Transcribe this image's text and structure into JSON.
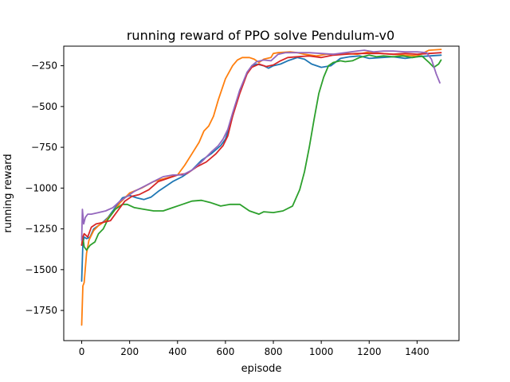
{
  "chart_data": {
    "type": "line",
    "title": "running reward of PPO solve Pendulum-v0",
    "xlabel": "episode",
    "ylabel": "running reward",
    "xlim": [
      -75,
      1575
    ],
    "ylim": [
      -1935,
      -130
    ],
    "xticks": [
      0,
      200,
      400,
      600,
      800,
      1000,
      1200,
      1400
    ],
    "xtick_labels": [
      "0",
      "200",
      "400",
      "600",
      "800",
      "1000",
      "1200",
      "1400"
    ],
    "yticks": [
      -250,
      -500,
      -750,
      -1000,
      -1250,
      -1500,
      -1750
    ],
    "ytick_labels": [
      "−250",
      "−500",
      "−750",
      "−1000",
      "−1250",
      "−1500",
      "−1750"
    ],
    "grid": false,
    "legend": "none",
    "series": [
      {
        "color": "#1f77b4",
        "points": [
          [
            0,
            -1570
          ],
          [
            5,
            -1340
          ],
          [
            10,
            -1300
          ],
          [
            20,
            -1310
          ],
          [
            35,
            -1300
          ],
          [
            50,
            -1250
          ],
          [
            80,
            -1220
          ],
          [
            110,
            -1180
          ],
          [
            140,
            -1120
          ],
          [
            170,
            -1060
          ],
          [
            200,
            -1045
          ],
          [
            230,
            -1060
          ],
          [
            260,
            -1070
          ],
          [
            290,
            -1055
          ],
          [
            320,
            -1020
          ],
          [
            350,
            -990
          ],
          [
            380,
            -960
          ],
          [
            420,
            -930
          ],
          [
            460,
            -890
          ],
          [
            500,
            -830
          ],
          [
            540,
            -790
          ],
          [
            580,
            -740
          ],
          [
            600,
            -700
          ],
          [
            630,
            -560
          ],
          [
            660,
            -400
          ],
          [
            690,
            -300
          ],
          [
            710,
            -250
          ],
          [
            730,
            -240
          ],
          [
            760,
            -250
          ],
          [
            780,
            -265
          ],
          [
            800,
            -250
          ],
          [
            830,
            -240
          ],
          [
            860,
            -220
          ],
          [
            900,
            -200
          ],
          [
            930,
            -210
          ],
          [
            960,
            -240
          ],
          [
            1000,
            -260
          ],
          [
            1040,
            -250
          ],
          [
            1080,
            -205
          ],
          [
            1120,
            -195
          ],
          [
            1160,
            -190
          ],
          [
            1200,
            -205
          ],
          [
            1250,
            -200
          ],
          [
            1300,
            -195
          ],
          [
            1350,
            -205
          ],
          [
            1400,
            -195
          ],
          [
            1450,
            -190
          ],
          [
            1500,
            -185
          ]
        ]
      },
      {
        "color": "#ff7f0e",
        "points": [
          [
            0,
            -1840
          ],
          [
            5,
            -1600
          ],
          [
            10,
            -1580
          ],
          [
            20,
            -1400
          ],
          [
            30,
            -1320
          ],
          [
            50,
            -1260
          ],
          [
            70,
            -1230
          ],
          [
            100,
            -1200
          ],
          [
            130,
            -1150
          ],
          [
            160,
            -1090
          ],
          [
            200,
            -1030
          ],
          [
            250,
            -1000
          ],
          [
            300,
            -960
          ],
          [
            350,
            -940
          ],
          [
            400,
            -920
          ],
          [
            430,
            -860
          ],
          [
            460,
            -790
          ],
          [
            490,
            -720
          ],
          [
            510,
            -650
          ],
          [
            530,
            -620
          ],
          [
            550,
            -560
          ],
          [
            570,
            -460
          ],
          [
            600,
            -330
          ],
          [
            630,
            -250
          ],
          [
            650,
            -215
          ],
          [
            670,
            -200
          ],
          [
            700,
            -200
          ],
          [
            720,
            -210
          ],
          [
            740,
            -230
          ],
          [
            760,
            -210
          ],
          [
            790,
            -200
          ],
          [
            800,
            -175
          ],
          [
            820,
            -170
          ],
          [
            870,
            -165
          ],
          [
            900,
            -170
          ],
          [
            930,
            -180
          ],
          [
            980,
            -190
          ],
          [
            1020,
            -180
          ],
          [
            1060,
            -180
          ],
          [
            1100,
            -175
          ],
          [
            1150,
            -180
          ],
          [
            1200,
            -165
          ],
          [
            1250,
            -175
          ],
          [
            1300,
            -180
          ],
          [
            1350,
            -185
          ],
          [
            1400,
            -190
          ],
          [
            1450,
            -155
          ],
          [
            1500,
            -150
          ]
        ]
      },
      {
        "color": "#2ca02c",
        "points": [
          [
            0,
            -1350
          ],
          [
            5,
            -1300
          ],
          [
            10,
            -1360
          ],
          [
            20,
            -1380
          ],
          [
            35,
            -1350
          ],
          [
            55,
            -1330
          ],
          [
            70,
            -1280
          ],
          [
            90,
            -1250
          ],
          [
            110,
            -1190
          ],
          [
            140,
            -1130
          ],
          [
            170,
            -1100
          ],
          [
            190,
            -1100
          ],
          [
            220,
            -1120
          ],
          [
            260,
            -1130
          ],
          [
            300,
            -1140
          ],
          [
            340,
            -1140
          ],
          [
            380,
            -1120
          ],
          [
            420,
            -1100
          ],
          [
            460,
            -1080
          ],
          [
            500,
            -1075
          ],
          [
            540,
            -1090
          ],
          [
            580,
            -1110
          ],
          [
            620,
            -1100
          ],
          [
            660,
            -1100
          ],
          [
            700,
            -1140
          ],
          [
            740,
            -1160
          ],
          [
            760,
            -1145
          ],
          [
            800,
            -1150
          ],
          [
            840,
            -1140
          ],
          [
            880,
            -1110
          ],
          [
            910,
            -1010
          ],
          [
            930,
            -900
          ],
          [
            950,
            -750
          ],
          [
            970,
            -580
          ],
          [
            990,
            -420
          ],
          [
            1010,
            -320
          ],
          [
            1030,
            -250
          ],
          [
            1050,
            -230
          ],
          [
            1080,
            -220
          ],
          [
            1100,
            -225
          ],
          [
            1130,
            -220
          ],
          [
            1160,
            -200
          ],
          [
            1200,
            -185
          ],
          [
            1230,
            -195
          ],
          [
            1260,
            -190
          ],
          [
            1300,
            -195
          ],
          [
            1340,
            -190
          ],
          [
            1380,
            -200
          ],
          [
            1420,
            -190
          ],
          [
            1450,
            -230
          ],
          [
            1470,
            -260
          ],
          [
            1490,
            -240
          ],
          [
            1500,
            -215
          ]
        ]
      },
      {
        "color": "#d62728",
        "points": [
          [
            0,
            -1350
          ],
          [
            5,
            -1300
          ],
          [
            10,
            -1280
          ],
          [
            25,
            -1300
          ],
          [
            40,
            -1240
          ],
          [
            60,
            -1220
          ],
          [
            90,
            -1210
          ],
          [
            120,
            -1200
          ],
          [
            150,
            -1140
          ],
          [
            180,
            -1080
          ],
          [
            210,
            -1050
          ],
          [
            240,
            -1040
          ],
          [
            280,
            -1010
          ],
          [
            320,
            -960
          ],
          [
            360,
            -940
          ],
          [
            400,
            -920
          ],
          [
            440,
            -910
          ],
          [
            480,
            -870
          ],
          [
            520,
            -840
          ],
          [
            560,
            -790
          ],
          [
            590,
            -740
          ],
          [
            610,
            -680
          ],
          [
            630,
            -560
          ],
          [
            660,
            -420
          ],
          [
            690,
            -300
          ],
          [
            710,
            -260
          ],
          [
            740,
            -240
          ],
          [
            770,
            -255
          ],
          [
            800,
            -245
          ],
          [
            830,
            -220
          ],
          [
            860,
            -200
          ],
          [
            900,
            -195
          ],
          [
            950,
            -190
          ],
          [
            1000,
            -200
          ],
          [
            1050,
            -185
          ],
          [
            1100,
            -180
          ],
          [
            1150,
            -175
          ],
          [
            1200,
            -175
          ],
          [
            1250,
            -175
          ],
          [
            1300,
            -180
          ],
          [
            1350,
            -175
          ],
          [
            1400,
            -180
          ],
          [
            1450,
            -175
          ],
          [
            1500,
            -170
          ]
        ]
      },
      {
        "color": "#9467bd",
        "points": [
          [
            0,
            -1320
          ],
          [
            3,
            -1130
          ],
          [
            8,
            -1220
          ],
          [
            15,
            -1180
          ],
          [
            25,
            -1160
          ],
          [
            40,
            -1160
          ],
          [
            70,
            -1150
          ],
          [
            100,
            -1140
          ],
          [
            130,
            -1120
          ],
          [
            160,
            -1080
          ],
          [
            190,
            -1050
          ],
          [
            220,
            -1020
          ],
          [
            260,
            -990
          ],
          [
            300,
            -960
          ],
          [
            340,
            -930
          ],
          [
            380,
            -920
          ],
          [
            420,
            -920
          ],
          [
            460,
            -890
          ],
          [
            500,
            -840
          ],
          [
            540,
            -780
          ],
          [
            570,
            -740
          ],
          [
            590,
            -700
          ],
          [
            610,
            -640
          ],
          [
            630,
            -540
          ],
          [
            660,
            -400
          ],
          [
            690,
            -290
          ],
          [
            710,
            -250
          ],
          [
            730,
            -225
          ],
          [
            760,
            -215
          ],
          [
            790,
            -220
          ],
          [
            820,
            -180
          ],
          [
            850,
            -170
          ],
          [
            900,
            -170
          ],
          [
            950,
            -170
          ],
          [
            1000,
            -175
          ],
          [
            1050,
            -180
          ],
          [
            1100,
            -170
          ],
          [
            1150,
            -160
          ],
          [
            1180,
            -155
          ],
          [
            1220,
            -165
          ],
          [
            1260,
            -160
          ],
          [
            1300,
            -160
          ],
          [
            1350,
            -165
          ],
          [
            1400,
            -165
          ],
          [
            1440,
            -170
          ],
          [
            1460,
            -210
          ],
          [
            1480,
            -300
          ],
          [
            1495,
            -355
          ]
        ]
      }
    ]
  }
}
